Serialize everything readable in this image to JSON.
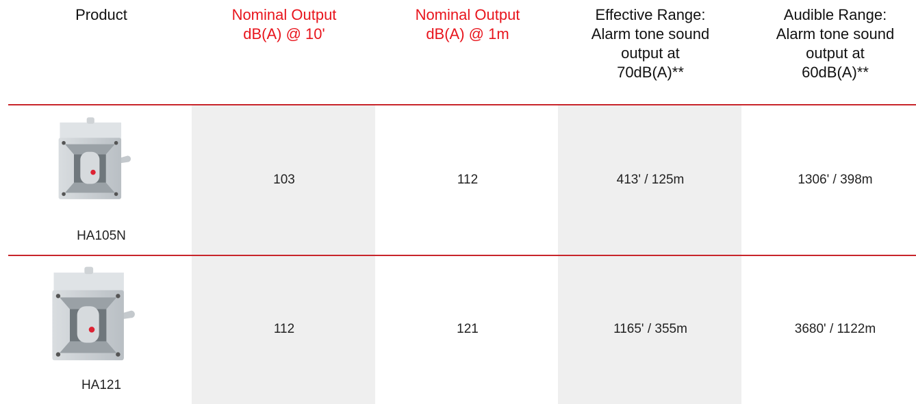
{
  "table": {
    "header": [
      {
        "lines": [
          "Product"
        ]
      },
      {
        "lines": [
          "Nominal Output",
          "dB(A) @ 10'"
        ]
      },
      {
        "lines": [
          "Nominal Output",
          "dB(A) @ 1m"
        ]
      },
      {
        "lines": [
          "Effective Range:",
          "Alarm tone sound",
          "output at",
          "70dB(A)**"
        ]
      },
      {
        "lines": [
          "Audible Range:",
          "Alarm tone sound",
          "output at",
          "60dB(A)**"
        ]
      }
    ],
    "rows": [
      {
        "product": "HA105N",
        "cells": [
          "103",
          "112",
          "413' / 125m",
          "1306' / 398m"
        ]
      },
      {
        "product": "HA121",
        "cells": [
          "112",
          "121",
          "1165' / 355m",
          "3680' / 1122m"
        ]
      }
    ]
  }
}
